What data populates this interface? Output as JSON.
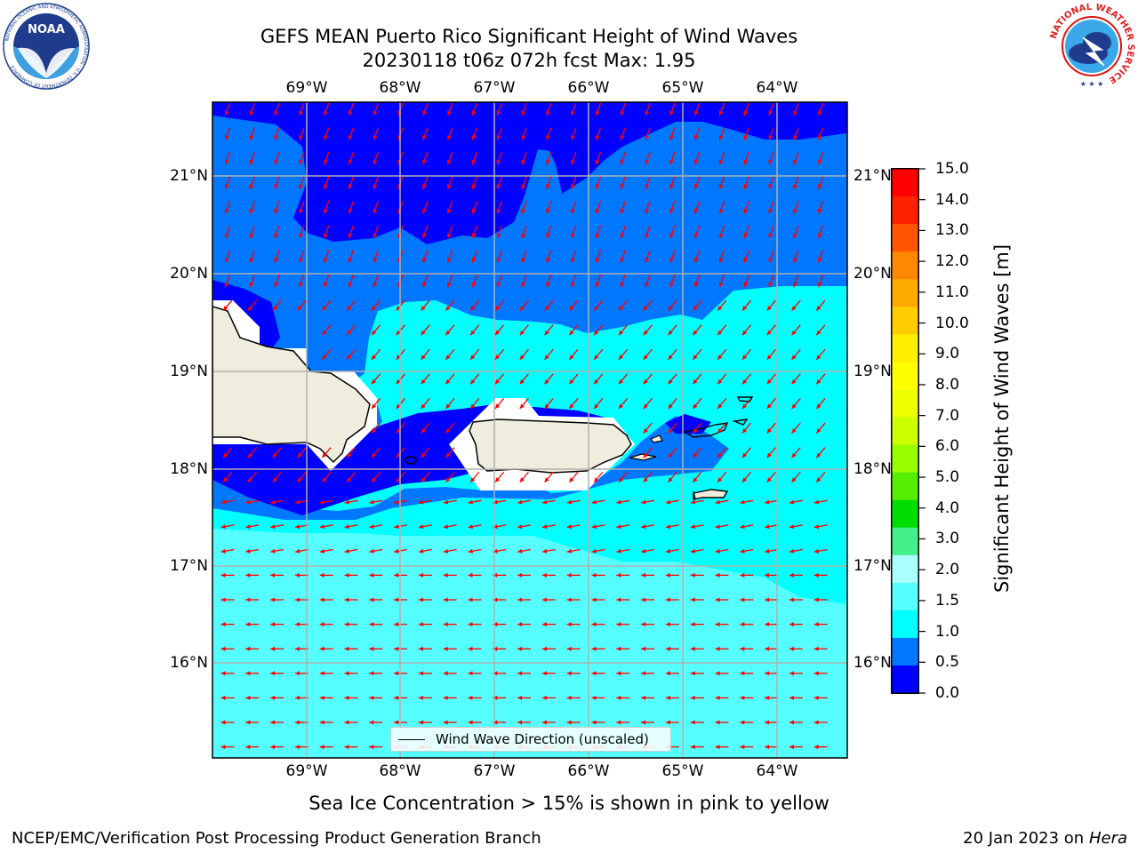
{
  "header": {
    "title_line1": "GEFS MEAN Puerto Rico Significant Height of Wind Waves",
    "title_line2": "20230118 t06z 072h fcst   Max: 1.95"
  },
  "logos": {
    "noaa": {
      "badge_text": "NOAA",
      "ring_text": "NATIONAL OCEANIC AND ATMOSPHERIC ADMINISTRATION · U.S. DEPARTMENT OF COMMERCE"
    },
    "nws": {
      "ring_text": "NATIONAL WEATHER SERVICE"
    }
  },
  "map": {
    "lon_range": [
      -70.0,
      -63.25
    ],
    "lat_range": [
      15.0,
      21.75
    ],
    "lon_ticks": [
      "69°W",
      "68°W",
      "67°W",
      "66°W",
      "65°W",
      "64°W"
    ],
    "lat_ticks": [
      "21°N",
      "20°N",
      "19°N",
      "18°N",
      "17°N",
      "16°N"
    ],
    "gridlines": true,
    "features": [
      "Hispaniola (east)",
      "Puerto Rico",
      "Mona Island",
      "Vieques",
      "Culebra",
      "U.S. Virgin Islands",
      "St. Croix"
    ],
    "legend_label": "Wind Wave Direction (unscaled)",
    "legend_placement": "bottom-center",
    "wave_direction": "arrows point west / south-west across the whole domain",
    "field_levels": {
      "0.0-0.5": "north-west offshore waters and leeward gap between islands",
      "0.5-1.0": "central band north of Puerto Rico",
      "1.0-1.5": "waters around and south-east of Puerto Rico",
      "1.5-2.0": "Caribbean waters south of 17.5°N"
    }
  },
  "colorbar": {
    "title": "Significant Height of Wind Waves [m]",
    "labels": [
      "15.0",
      "14.0",
      "13.0",
      "12.0",
      "11.0",
      "10.0",
      "9.0",
      "8.0",
      "7.0",
      "6.0",
      "5.0",
      "4.0",
      "3.0",
      "2.0",
      "1.5",
      "1.0",
      "0.5",
      "0.0"
    ],
    "colors": [
      "#ff0000",
      "#ff2200",
      "#ff5500",
      "#ff8800",
      "#ffaa00",
      "#ffcc00",
      "#ffee00",
      "#ffff00",
      "#eeff00",
      "#ccff00",
      "#99ff00",
      "#55ee00",
      "#00dd00",
      "#44ee88",
      "#aaffff",
      "#55ffff",
      "#00ffff",
      "#0077ff",
      "#0000ff"
    ]
  },
  "footer": {
    "sea_ice_note": "Sea Ice Concentration > 15% is shown in pink to yellow",
    "credit": "NCEP/EMC/Verification Post Processing Product Generation Branch",
    "date_prefix": "20 Jan 2023 on ",
    "host": "Hera"
  }
}
